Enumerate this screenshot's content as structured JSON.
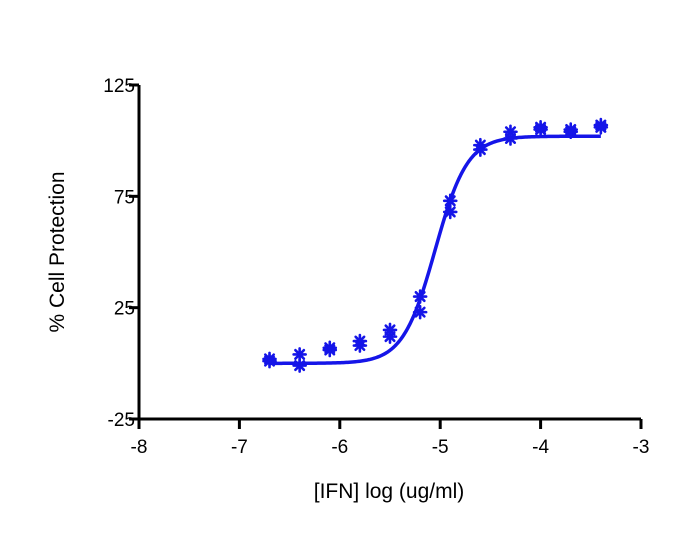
{
  "chart_data": {
    "type": "scatter",
    "title": "",
    "xlabel": "[IFN] log (ug/ml)",
    "ylabel": "% Cell Protection",
    "xlim": [
      -8,
      -3
    ],
    "ylim": [
      -25,
      125
    ],
    "x_ticks": [
      -8,
      -7,
      -6,
      -5,
      -4,
      -3
    ],
    "y_ticks": [
      -25,
      25,
      75,
      125
    ],
    "grid": false,
    "legend": "none",
    "series": [
      {
        "kind": "points",
        "marker": "asterisk",
        "color": "#1515e8",
        "points": [
          [
            -6.7,
            2
          ],
          [
            -6.7,
            1
          ],
          [
            -6.4,
            4
          ],
          [
            -6.4,
            -1
          ],
          [
            -6.1,
            6
          ],
          [
            -6.1,
            7
          ],
          [
            -5.8,
            10
          ],
          [
            -5.8,
            8
          ],
          [
            -5.5,
            15
          ],
          [
            -5.5,
            12
          ],
          [
            -5.2,
            30
          ],
          [
            -5.2,
            23
          ],
          [
            -4.9,
            73
          ],
          [
            -4.9,
            68
          ],
          [
            -4.6,
            98
          ],
          [
            -4.6,
            96
          ],
          [
            -4.3,
            104
          ],
          [
            -4.3,
            101
          ],
          [
            -4.0,
            106
          ],
          [
            -4.0,
            105
          ],
          [
            -3.7,
            105
          ],
          [
            -3.7,
            104
          ],
          [
            -3.4,
            107
          ],
          [
            -3.4,
            106
          ]
        ]
      },
      {
        "kind": "fit",
        "color": "#1515e8",
        "model": "4PL",
        "bottom": 0,
        "top": 102,
        "log_ec50": -5.05,
        "hill": 2.7,
        "x_range": [
          -6.7,
          -3.4
        ]
      }
    ]
  }
}
